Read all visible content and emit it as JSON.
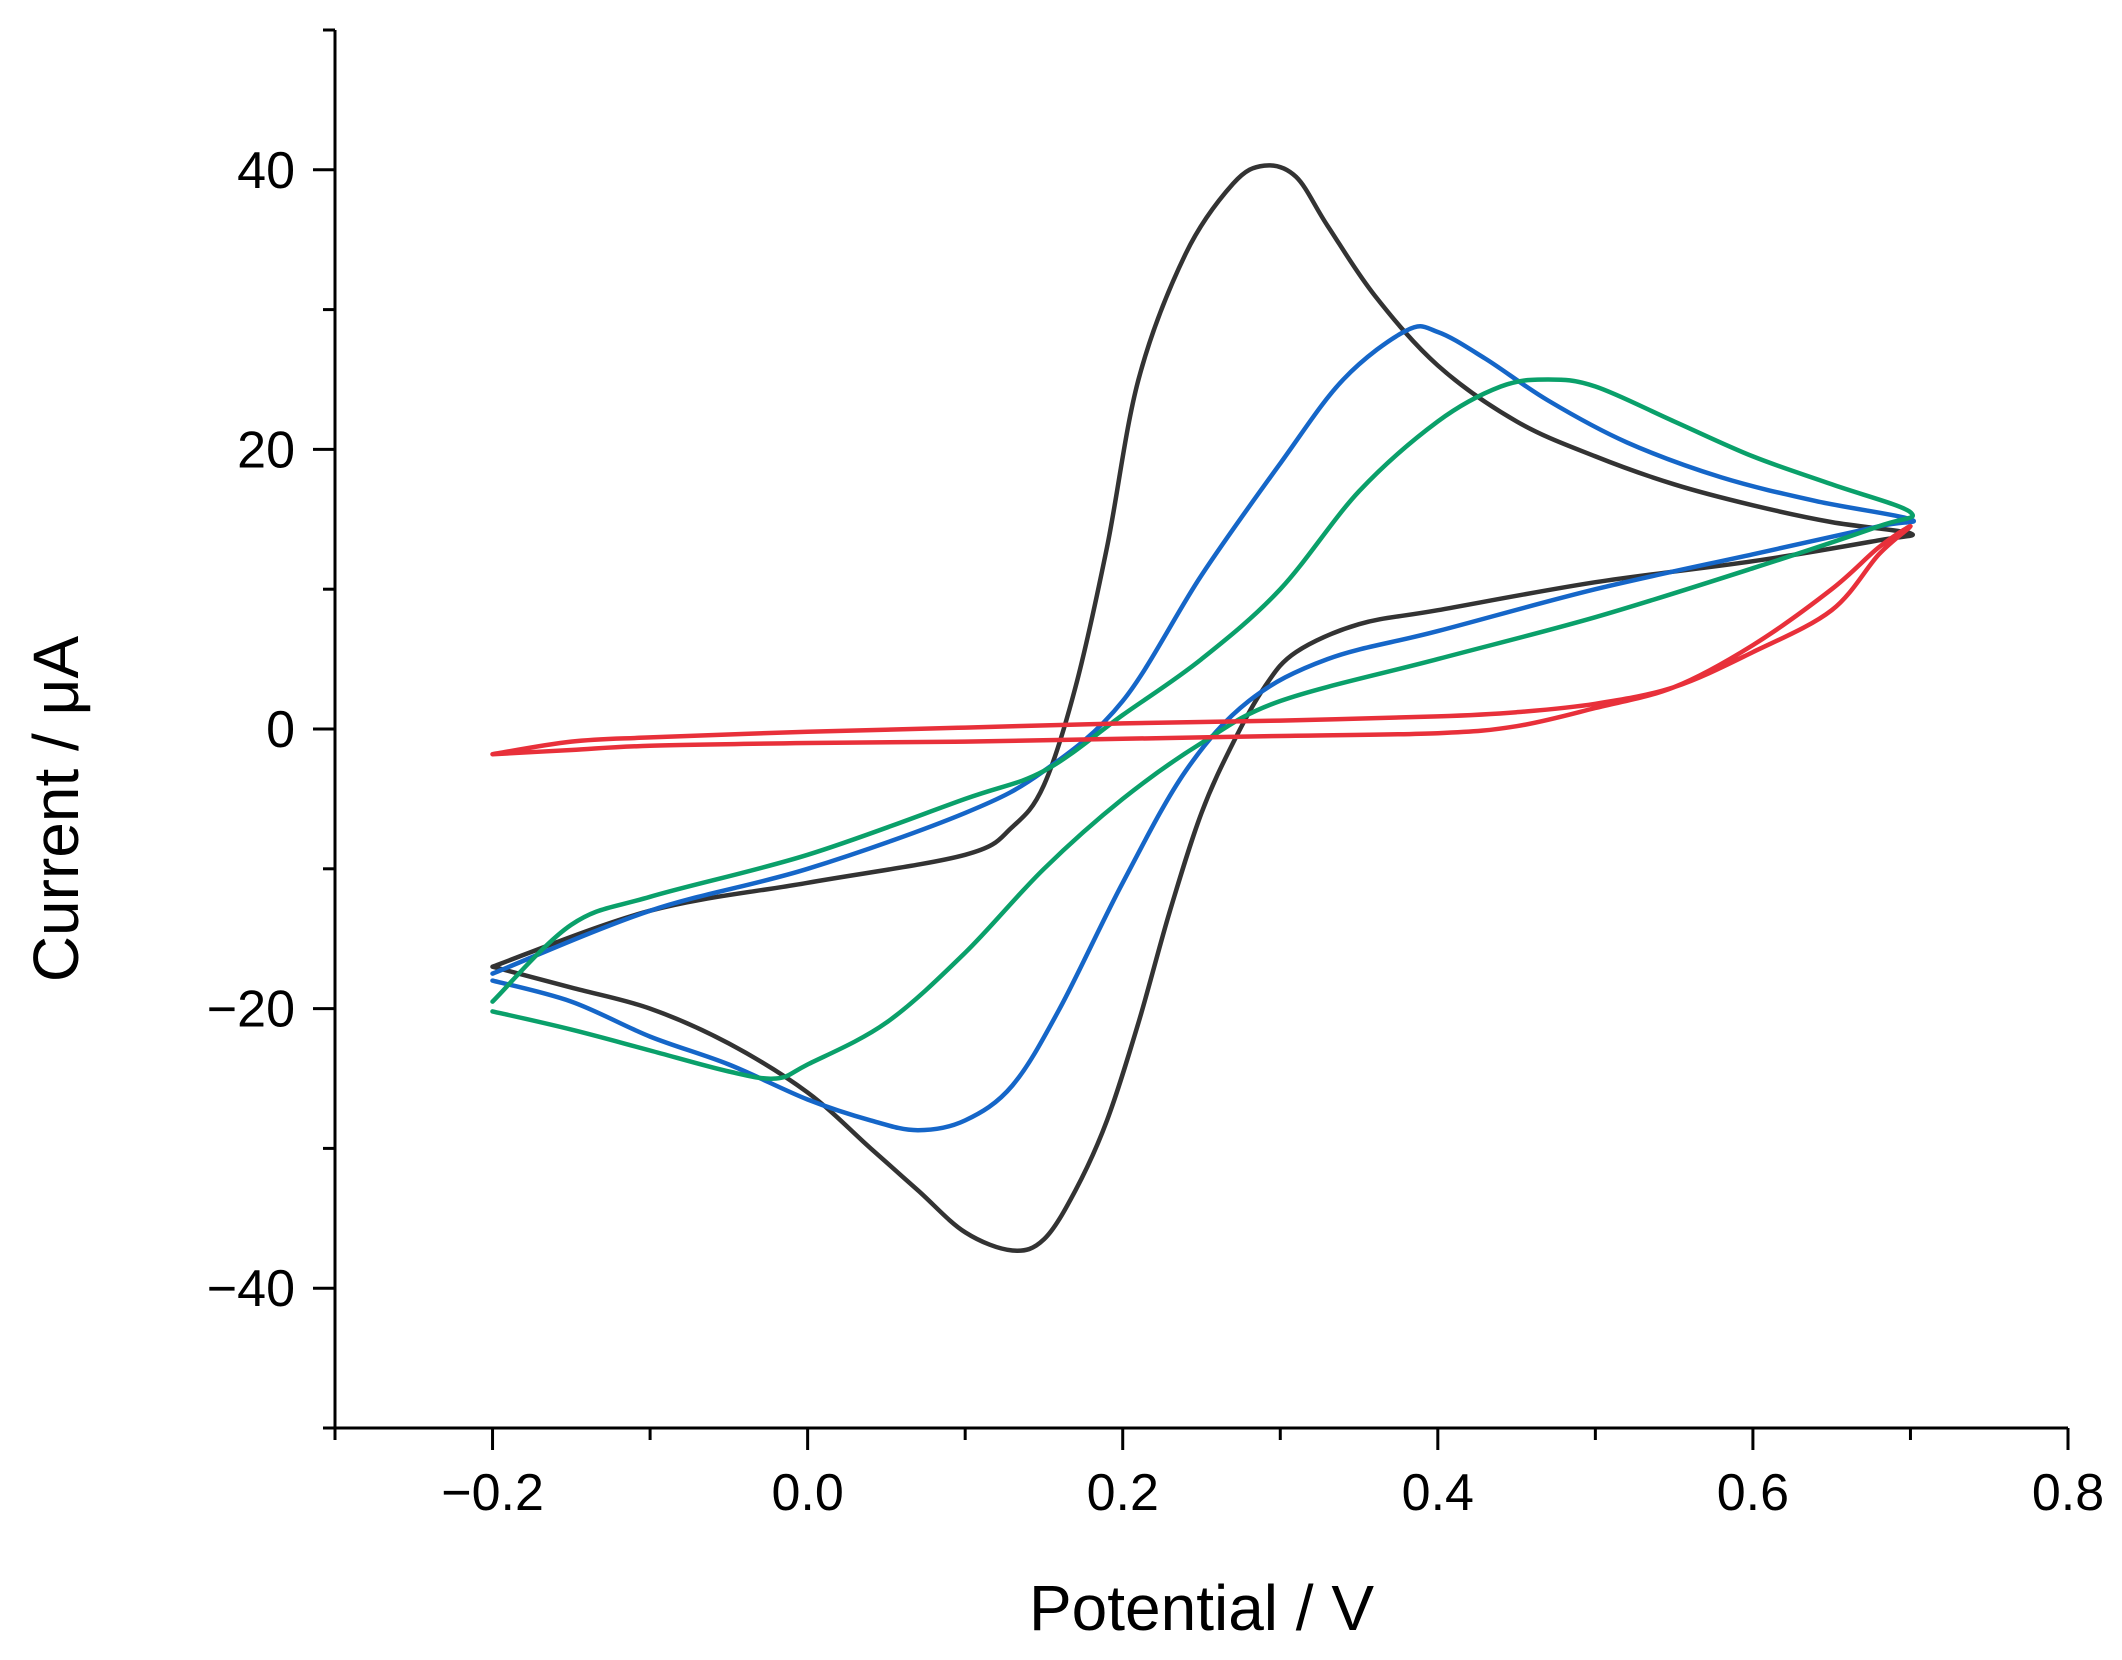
{
  "chart_data": {
    "type": "line",
    "title": "",
    "xlabel": "Potential / V",
    "ylabel": "Current / μA",
    "xlim": [
      -0.3,
      0.8
    ],
    "ylim": [
      -50,
      50
    ],
    "x_major_ticks": [
      -0.2,
      0.0,
      0.2,
      0.4,
      0.6,
      0.8
    ],
    "x_tick_labels": [
      "−0.2",
      "0.0",
      "0.2",
      "0.4",
      "0.6",
      "0.8"
    ],
    "y_major_ticks": [
      -40,
      -20,
      0,
      20,
      40
    ],
    "y_tick_labels": [
      "−40",
      "−20",
      "0",
      "20",
      "40"
    ],
    "x_minor_ticks": [
      -0.3,
      -0.1,
      0.1,
      0.3,
      0.5,
      0.7
    ],
    "y_minor_ticks": [
      -50,
      -30,
      -10,
      10,
      30,
      50
    ],
    "grid": false,
    "legend": "none",
    "series": [
      {
        "name": "black",
        "color": "#333333",
        "points": [
          [
            -0.2,
            -17
          ],
          [
            -0.1,
            -13
          ],
          [
            0.0,
            -11
          ],
          [
            0.1,
            -9
          ],
          [
            0.13,
            -7
          ],
          [
            0.15,
            -4
          ],
          [
            0.17,
            3
          ],
          [
            0.19,
            13
          ],
          [
            0.21,
            25
          ],
          [
            0.24,
            34
          ],
          [
            0.27,
            39
          ],
          [
            0.29,
            40.3
          ],
          [
            0.31,
            39.5
          ],
          [
            0.33,
            36
          ],
          [
            0.36,
            31
          ],
          [
            0.4,
            26
          ],
          [
            0.45,
            22
          ],
          [
            0.5,
            19.5
          ],
          [
            0.55,
            17.5
          ],
          [
            0.6,
            16
          ],
          [
            0.65,
            14.8
          ],
          [
            0.7,
            14
          ],
          [
            0.68,
            13.5
          ],
          [
            0.6,
            12
          ],
          [
            0.5,
            10.5
          ],
          [
            0.4,
            8.5
          ],
          [
            0.35,
            7.5
          ],
          [
            0.31,
            5.5
          ],
          [
            0.29,
            3
          ],
          [
            0.27,
            -1
          ],
          [
            0.25,
            -6
          ],
          [
            0.23,
            -13
          ],
          [
            0.21,
            -21
          ],
          [
            0.19,
            -28
          ],
          [
            0.17,
            -33
          ],
          [
            0.15,
            -36.5
          ],
          [
            0.13,
            -37.3
          ],
          [
            0.1,
            -36
          ],
          [
            0.07,
            -33
          ],
          [
            0.04,
            -30
          ],
          [
            0.0,
            -26
          ],
          [
            -0.05,
            -22.5
          ],
          [
            -0.1,
            -20
          ],
          [
            -0.15,
            -18.5
          ],
          [
            -0.2,
            -17
          ]
        ]
      },
      {
        "name": "blue",
        "color": "#1566c8",
        "points": [
          [
            -0.2,
            -17.5
          ],
          [
            -0.1,
            -13
          ],
          [
            0.0,
            -10
          ],
          [
            0.1,
            -6
          ],
          [
            0.15,
            -3
          ],
          [
            0.2,
            2
          ],
          [
            0.25,
            11
          ],
          [
            0.3,
            19
          ],
          [
            0.34,
            25
          ],
          [
            0.38,
            28.5
          ],
          [
            0.4,
            28.4
          ],
          [
            0.43,
            26.5
          ],
          [
            0.47,
            23.5
          ],
          [
            0.52,
            20.5
          ],
          [
            0.58,
            18
          ],
          [
            0.64,
            16.3
          ],
          [
            0.7,
            15
          ],
          [
            0.68,
            14.5
          ],
          [
            0.6,
            12.5
          ],
          [
            0.5,
            10
          ],
          [
            0.4,
            7
          ],
          [
            0.33,
            5
          ],
          [
            0.28,
            2
          ],
          [
            0.24,
            -3
          ],
          [
            0.2,
            -11
          ],
          [
            0.16,
            -20
          ],
          [
            0.13,
            -25.5
          ],
          [
            0.1,
            -28
          ],
          [
            0.07,
            -28.7
          ],
          [
            0.04,
            -28
          ],
          [
            0.0,
            -26.5
          ],
          [
            -0.05,
            -24
          ],
          [
            -0.1,
            -22
          ],
          [
            -0.15,
            -19.5
          ],
          [
            -0.2,
            -18
          ]
        ]
      },
      {
        "name": "green",
        "color": "#0aa06a",
        "points": [
          [
            -0.2,
            -19.5
          ],
          [
            -0.15,
            -14
          ],
          [
            -0.1,
            -12
          ],
          [
            0.0,
            -9
          ],
          [
            0.1,
            -5
          ],
          [
            0.15,
            -3
          ],
          [
            0.2,
            1
          ],
          [
            0.25,
            5
          ],
          [
            0.3,
            10
          ],
          [
            0.35,
            17
          ],
          [
            0.4,
            22
          ],
          [
            0.44,
            24.5
          ],
          [
            0.47,
            25
          ],
          [
            0.5,
            24.5
          ],
          [
            0.55,
            22
          ],
          [
            0.6,
            19.5
          ],
          [
            0.65,
            17.5
          ],
          [
            0.7,
            15.5
          ],
          [
            0.68,
            14.5
          ],
          [
            0.6,
            11.5
          ],
          [
            0.5,
            8
          ],
          [
            0.4,
            5
          ],
          [
            0.3,
            2
          ],
          [
            0.25,
            -1
          ],
          [
            0.2,
            -5
          ],
          [
            0.15,
            -10
          ],
          [
            0.1,
            -16
          ],
          [
            0.05,
            -21
          ],
          [
            0.0,
            -24
          ],
          [
            -0.02,
            -25
          ],
          [
            -0.05,
            -24.5
          ],
          [
            -0.1,
            -23
          ],
          [
            -0.15,
            -21.5
          ],
          [
            -0.2,
            -20.2
          ]
        ]
      },
      {
        "name": "red",
        "color": "#e8303a",
        "points": [
          [
            -0.2,
            -1.8
          ],
          [
            -0.15,
            -1.5
          ],
          [
            -0.1,
            -1.2
          ],
          [
            0.0,
            -1
          ],
          [
            0.1,
            -0.9
          ],
          [
            0.2,
            -0.7
          ],
          [
            0.3,
            -0.5
          ],
          [
            0.4,
            -0.3
          ],
          [
            0.45,
            0.2
          ],
          [
            0.5,
            1.5
          ],
          [
            0.55,
            3
          ],
          [
            0.6,
            6
          ],
          [
            0.65,
            10
          ],
          [
            0.68,
            13
          ],
          [
            0.7,
            14.5
          ],
          [
            0.68,
            12.5
          ],
          [
            0.65,
            8.5
          ],
          [
            0.6,
            5.5
          ],
          [
            0.55,
            3
          ],
          [
            0.5,
            1.8
          ],
          [
            0.45,
            1.2
          ],
          [
            0.4,
            0.9
          ],
          [
            0.3,
            0.6
          ],
          [
            0.2,
            0.4
          ],
          [
            0.1,
            0.1
          ],
          [
            0.0,
            -0.2
          ],
          [
            -0.1,
            -0.6
          ],
          [
            -0.15,
            -0.9
          ],
          [
            -0.2,
            -1.8
          ]
        ]
      }
    ]
  }
}
